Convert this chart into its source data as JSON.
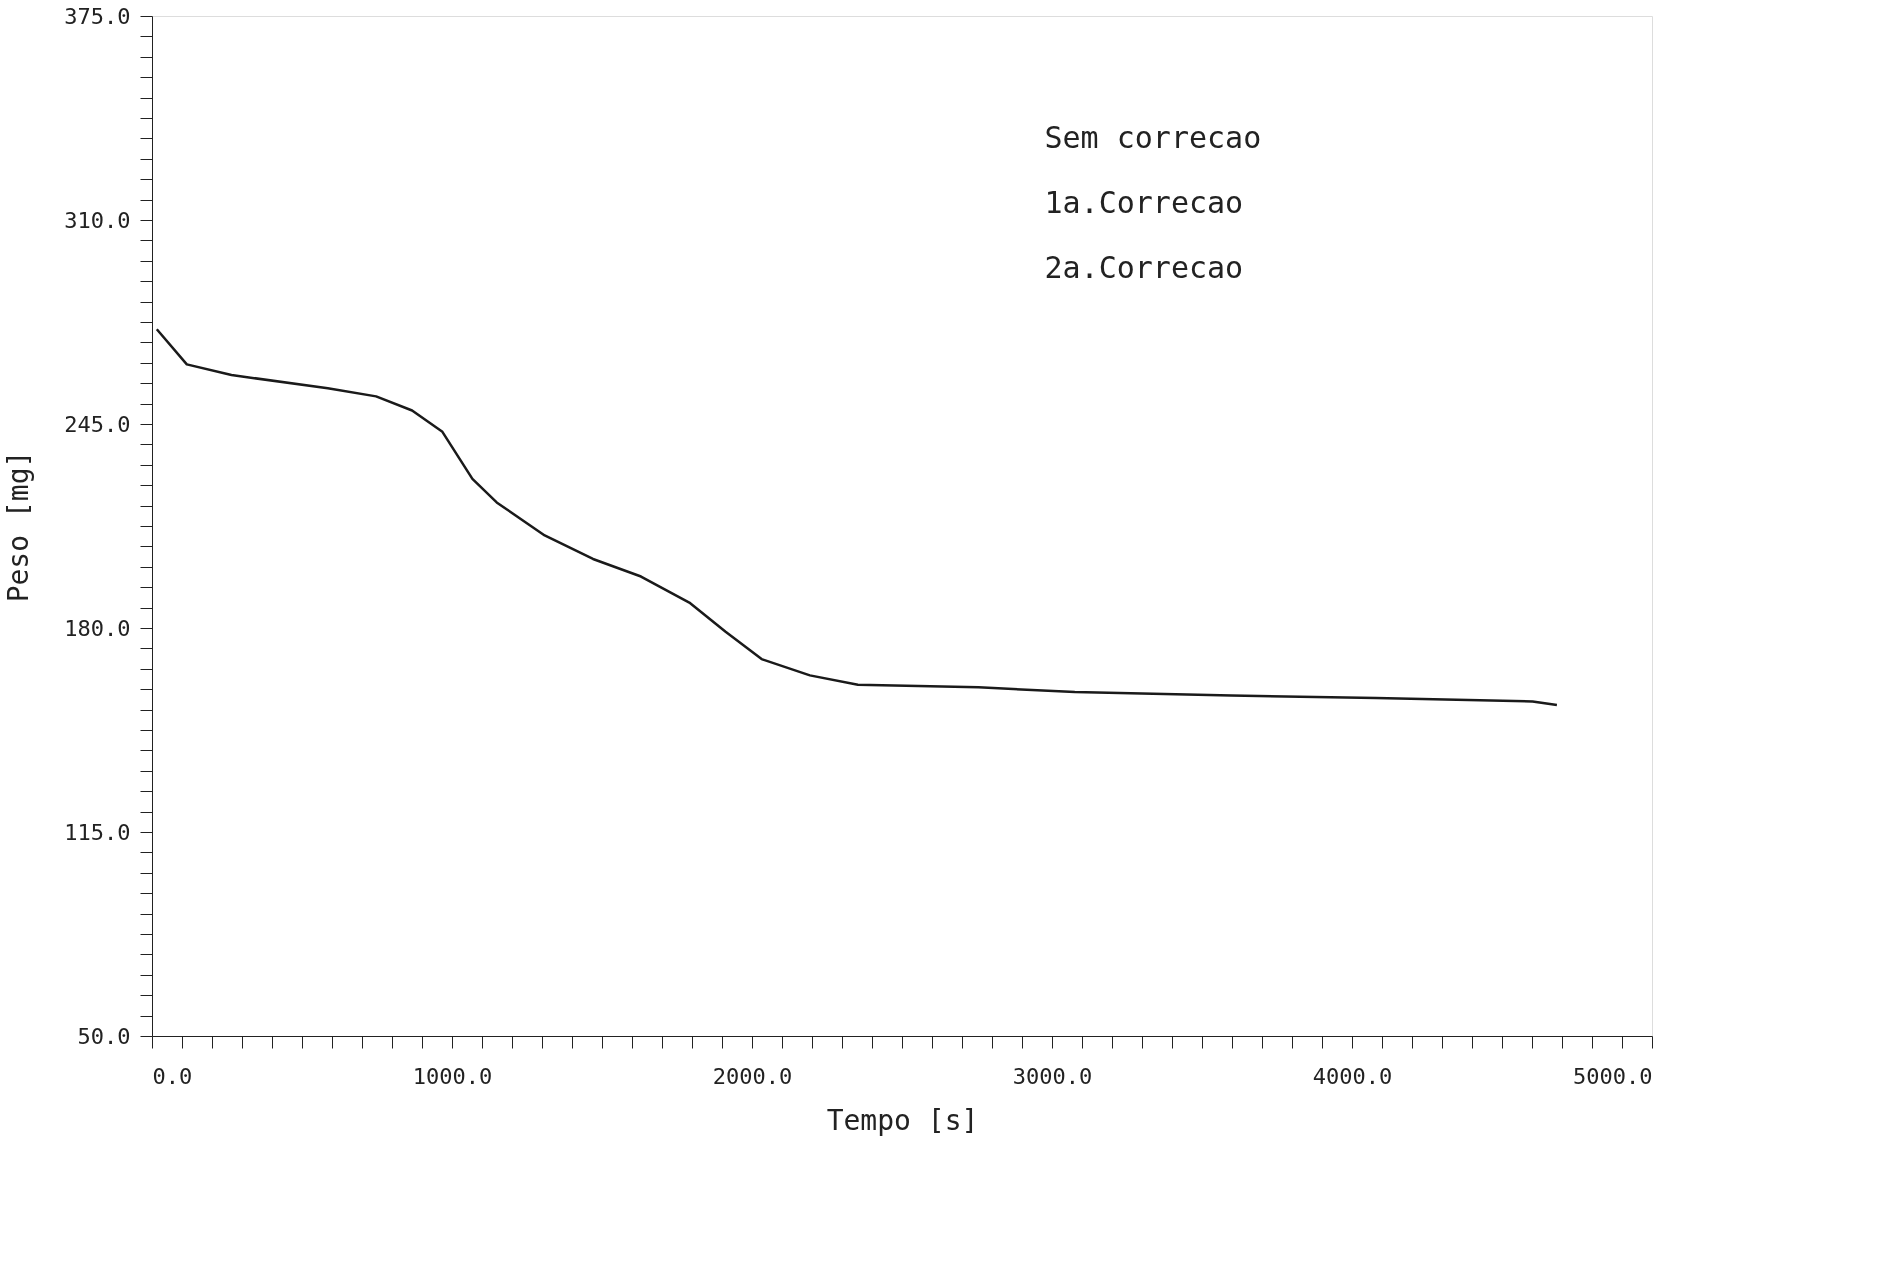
{
  "chart_data": {
    "type": "line",
    "xlabel": "Tempo  [s]",
    "ylabel": "Peso  [mg]",
    "x": [
      16,
      116,
      265,
      586,
      747,
      867,
      968,
      1068,
      1149,
      1309,
      1470,
      1630,
      1791,
      1912,
      2032,
      2193,
      2353,
      2755,
      3076,
      3598,
      4080,
      4602,
      4683
    ],
    "series": [
      {
        "color": "#1a1a1a",
        "values": [
          275.2,
          264,
          260.6,
          256.4,
          253.8,
          249.3,
          242.5,
          227.5,
          220,
          209.5,
          202,
          196.4,
          188.1,
          178.8,
          170.1,
          164.9,
          161.9,
          161.1,
          159.6,
          158.5,
          157.7,
          156.6,
          155.5
        ]
      }
    ],
    "xlim": [
      0,
      5000
    ],
    "ylim": [
      50,
      375
    ],
    "xticks": [
      {
        "value": 0,
        "label": "0.0"
      },
      {
        "value": 100,
        "label": null
      },
      {
        "value": 200,
        "label": null
      },
      {
        "value": 300,
        "label": null
      },
      {
        "value": 400,
        "label": null
      },
      {
        "value": 500,
        "label": null
      },
      {
        "value": 600,
        "label": null
      },
      {
        "value": 700,
        "label": null
      },
      {
        "value": 800,
        "label": null
      },
      {
        "value": 900,
        "label": null
      },
      {
        "value": 1000,
        "label": "1000.0"
      },
      {
        "value": 1100,
        "label": null
      },
      {
        "value": 1200,
        "label": null
      },
      {
        "value": 1300,
        "label": null
      },
      {
        "value": 1400,
        "label": null
      },
      {
        "value": 1500,
        "label": null
      },
      {
        "value": 1600,
        "label": null
      },
      {
        "value": 1700,
        "label": null
      },
      {
        "value": 1800,
        "label": null
      },
      {
        "value": 1900,
        "label": null
      },
      {
        "value": 2000,
        "label": "2000.0"
      },
      {
        "value": 2100,
        "label": null
      },
      {
        "value": 2200,
        "label": null
      },
      {
        "value": 2300,
        "label": null
      },
      {
        "value": 2400,
        "label": null
      },
      {
        "value": 2500,
        "label": null
      },
      {
        "value": 2600,
        "label": null
      },
      {
        "value": 2700,
        "label": null
      },
      {
        "value": 2800,
        "label": null
      },
      {
        "value": 2900,
        "label": null
      },
      {
        "value": 3000,
        "label": "3000.0"
      },
      {
        "value": 3100,
        "label": null
      },
      {
        "value": 3200,
        "label": null
      },
      {
        "value": 3300,
        "label": null
      },
      {
        "value": 3400,
        "label": null
      },
      {
        "value": 3500,
        "label": null
      },
      {
        "value": 3600,
        "label": null
      },
      {
        "value": 3700,
        "label": null
      },
      {
        "value": 3800,
        "label": null
      },
      {
        "value": 3900,
        "label": null
      },
      {
        "value": 4000,
        "label": "4000.0"
      },
      {
        "value": 4100,
        "label": null
      },
      {
        "value": 4200,
        "label": null
      },
      {
        "value": 4300,
        "label": null
      },
      {
        "value": 4400,
        "label": null
      },
      {
        "value": 4500,
        "label": null
      },
      {
        "value": 4600,
        "label": null
      },
      {
        "value": 4700,
        "label": null
      },
      {
        "value": 4800,
        "label": null
      },
      {
        "value": 4900,
        "label": null
      },
      {
        "value": 5000,
        "label": "5000.0"
      }
    ],
    "yticks": [
      {
        "value": 50,
        "label": "50.0"
      },
      {
        "value": 56.5,
        "label": null
      },
      {
        "value": 63,
        "label": null
      },
      {
        "value": 69.5,
        "label": null
      },
      {
        "value": 76,
        "label": null
      },
      {
        "value": 82.5,
        "label": null
      },
      {
        "value": 89,
        "label": null
      },
      {
        "value": 95.5,
        "label": null
      },
      {
        "value": 102,
        "label": null
      },
      {
        "value": 108.5,
        "label": null
      },
      {
        "value": 115,
        "label": "115.0"
      },
      {
        "value": 121.5,
        "label": null
      },
      {
        "value": 128,
        "label": null
      },
      {
        "value": 134.5,
        "label": null
      },
      {
        "value": 141,
        "label": null
      },
      {
        "value": 147.5,
        "label": null
      },
      {
        "value": 154,
        "label": null
      },
      {
        "value": 160.5,
        "label": null
      },
      {
        "value": 167,
        "label": null
      },
      {
        "value": 173.5,
        "label": null
      },
      {
        "value": 180,
        "label": "180.0"
      },
      {
        "value": 186.5,
        "label": null
      },
      {
        "value": 193,
        "label": null
      },
      {
        "value": 199.5,
        "label": null
      },
      {
        "value": 206,
        "label": null
      },
      {
        "value": 212.5,
        "label": null
      },
      {
        "value": 219,
        "label": null
      },
      {
        "value": 225.5,
        "label": null
      },
      {
        "value": 232,
        "label": null
      },
      {
        "value": 238.5,
        "label": null
      },
      {
        "value": 245,
        "label": "245.0"
      },
      {
        "value": 251.5,
        "label": null
      },
      {
        "value": 258,
        "label": null
      },
      {
        "value": 264.5,
        "label": null
      },
      {
        "value": 271,
        "label": null
      },
      {
        "value": 277.5,
        "label": null
      },
      {
        "value": 284,
        "label": null
      },
      {
        "value": 290.5,
        "label": null
      },
      {
        "value": 297,
        "label": null
      },
      {
        "value": 303.5,
        "label": null
      },
      {
        "value": 310,
        "label": "310.0"
      },
      {
        "value": 316.5,
        "label": null
      },
      {
        "value": 323,
        "label": null
      },
      {
        "value": 329.5,
        "label": null
      },
      {
        "value": 336,
        "label": null
      },
      {
        "value": 342.5,
        "label": null
      },
      {
        "value": 349,
        "label": null
      },
      {
        "value": 355.5,
        "label": null
      },
      {
        "value": 362,
        "label": null
      },
      {
        "value": 368.5,
        "label": null
      },
      {
        "value": 375,
        "label": "375.0"
      }
    ],
    "annotations": [
      "Sem correcao",
      "1a.Correcao",
      "2a.Correcao"
    ],
    "grid": false,
    "marker": "none",
    "line_style": "solid"
  }
}
